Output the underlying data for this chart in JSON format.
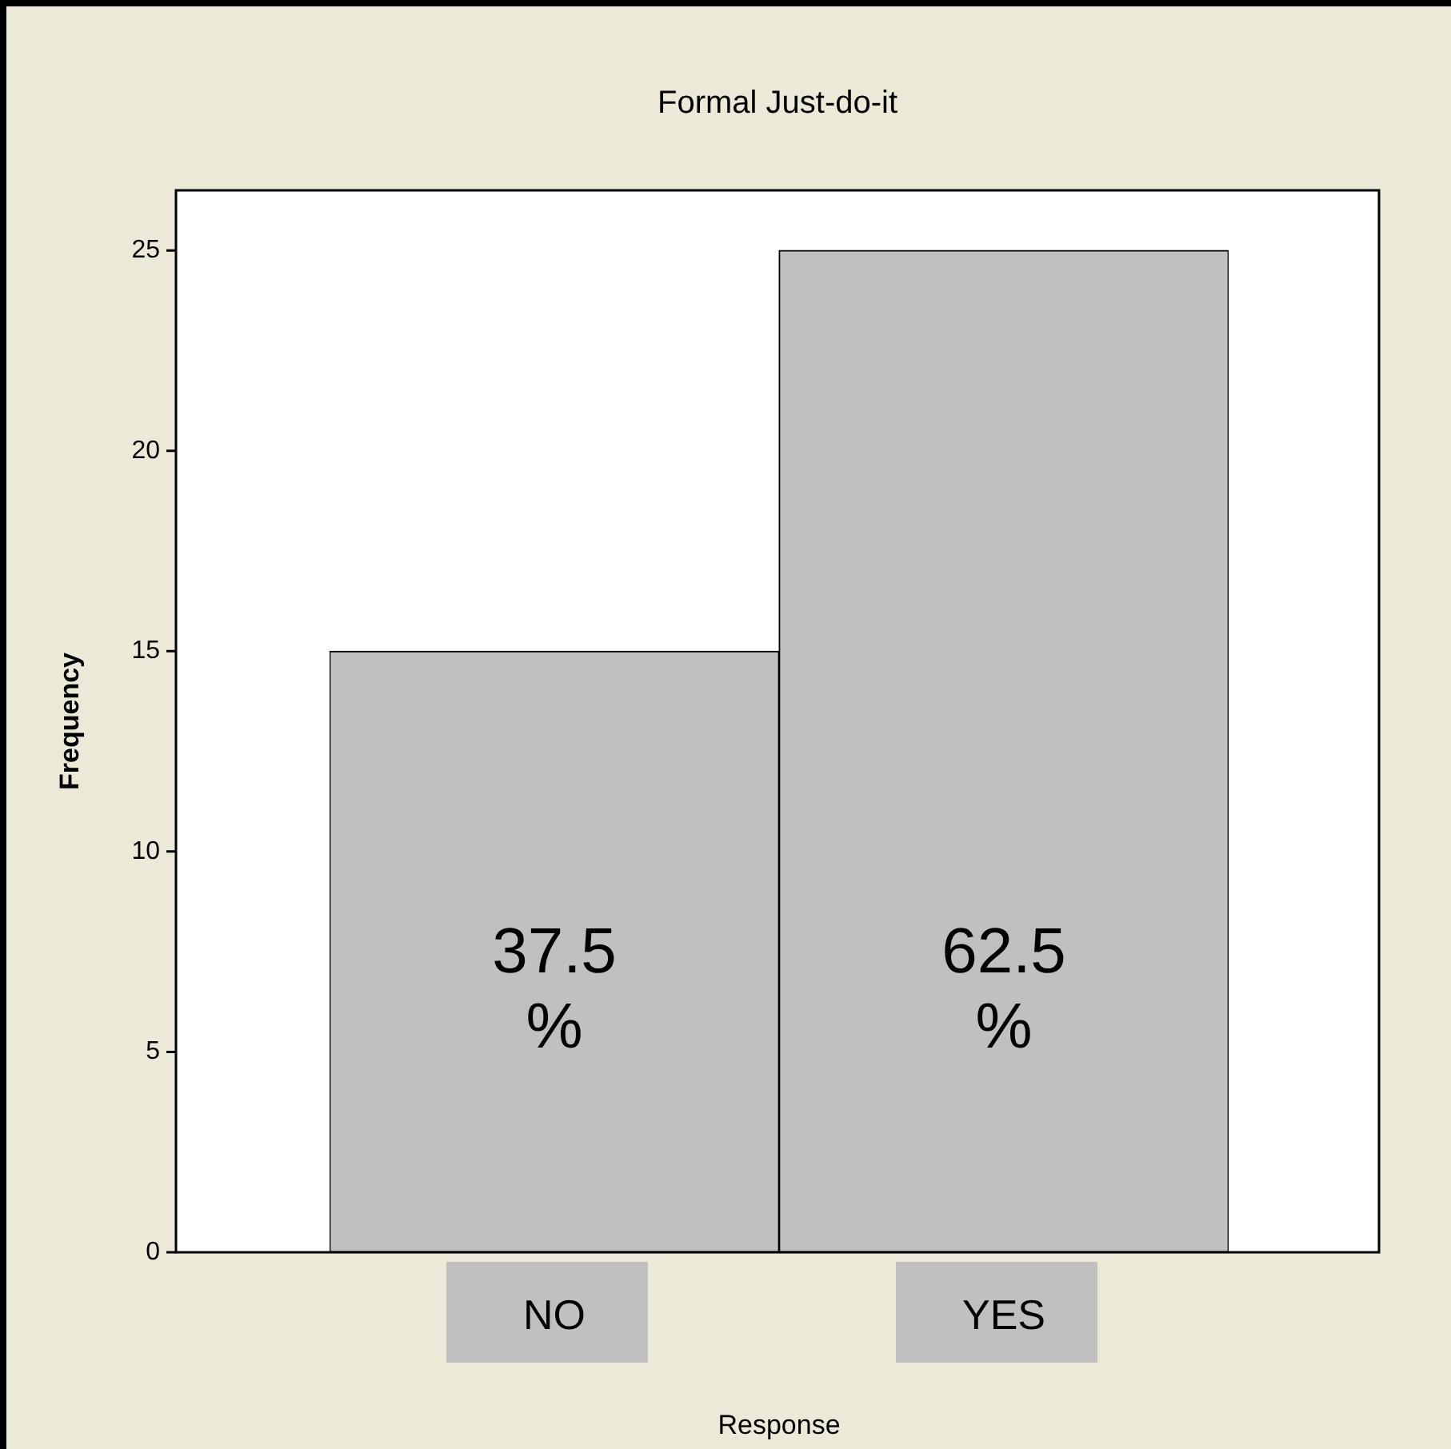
{
  "chart_data": {
    "type": "bar",
    "title": "Formal Just-do-it",
    "xlabel": "Response",
    "ylabel": "Frequency",
    "categories": [
      "NO",
      "YES"
    ],
    "values": [
      15,
      25
    ],
    "color": "#c0c0c0",
    "annotations": [
      "37.5 %",
      "62.5 %"
    ],
    "ylim": [
      0,
      26.5
    ],
    "yticks": [
      0,
      5,
      10,
      15,
      20,
      25
    ],
    "grid": false,
    "legend": false
  }
}
